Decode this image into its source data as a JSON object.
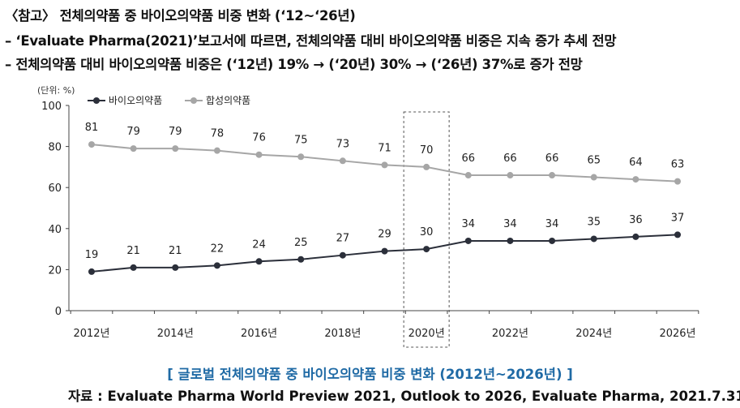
{
  "header": {
    "line1": "〈참고〉 전체의약품 중 바이오의약품 비중 변화 (‘12~‘26년)",
    "line2": "– ‘Evaluate Pharma(2021)’보고서에 따르면, 전체의약품 대비 바이오의약품 비중은 지속 증가 추세 전망",
    "line3": "– 전체의약품 대비 바이오의약품 비중은 (‘12년) 19% → (‘20년) 30% → (‘26년) 37%로 증가 전망"
  },
  "chart_data": {
    "type": "line",
    "unit_label": "(단위: %)",
    "x": [
      2012,
      2013,
      2014,
      2015,
      2016,
      2017,
      2018,
      2019,
      2020,
      2021,
      2022,
      2023,
      2024,
      2025,
      2026
    ],
    "x_tick_labels": [
      "2012년",
      "2014년",
      "2016년",
      "2018년",
      "2020년",
      "2022년",
      "2024년",
      "2026년"
    ],
    "x_tick_years": [
      2012,
      2014,
      2016,
      2018,
      2020,
      2022,
      2024,
      2026
    ],
    "ylim": [
      0,
      100
    ],
    "y_ticks": [
      0,
      20,
      40,
      60,
      80,
      100
    ],
    "legend_position": "top-left",
    "highlight_x": 2020,
    "series": [
      {
        "name": "바이오의약품",
        "color": "#2b2f3a",
        "marker": "circle",
        "values": [
          19,
          21,
          21,
          22,
          24,
          25,
          27,
          29,
          30,
          34,
          34,
          34,
          35,
          36,
          37
        ]
      },
      {
        "name": "합성의약품",
        "color": "#a6a6a6",
        "marker": "circle",
        "values": [
          81,
          79,
          79,
          78,
          76,
          75,
          73,
          71,
          70,
          66,
          66,
          66,
          65,
          64,
          63
        ]
      }
    ]
  },
  "caption": "[ 글로벌 전체의약품 중 바이오의약품 비중 변화 (2012년~2026년) ]",
  "source": "자료 : Evaluate Pharma World Preview 2021, Outlook to 2026, Evaluate Pharma, 2021.7.31."
}
